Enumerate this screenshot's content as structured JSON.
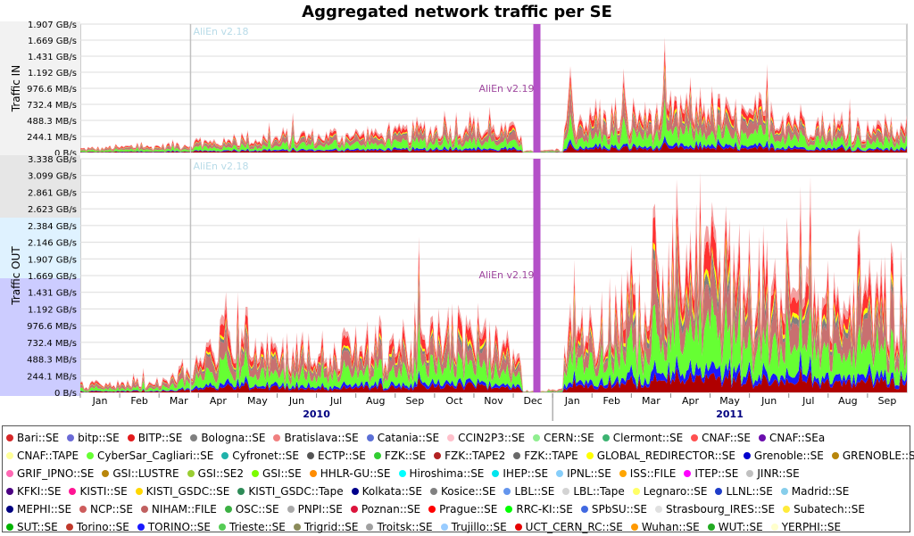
{
  "chart_data": {
    "type": "area",
    "title": "Aggregated network traffic per SE",
    "x_months": [
      "Jan",
      "Feb",
      "Mar",
      "Apr",
      "May",
      "Jun",
      "Jul",
      "Aug",
      "Sep",
      "Oct",
      "Nov",
      "Dec",
      "Jan",
      "Feb",
      "Mar",
      "Apr",
      "May",
      "Jun",
      "Jul",
      "Aug",
      "Sep"
    ],
    "x_years": [
      "2010",
      "2011"
    ],
    "annotations": [
      {
        "label": "AliEn v2.18",
        "month": 2.8
      },
      {
        "label": "AliEn v2.19",
        "month": 11.6
      }
    ],
    "panels": [
      {
        "ylabel": "Traffic IN",
        "ylim": [
          0,
          1.907
        ],
        "ticks": [
          "1.907 GB/s",
          "1.669 GB/s",
          "1.431 GB/s",
          "1.192 GB/s",
          "976.6 MB/s",
          "732.4 MB/s",
          "488.3 MB/s",
          "244.1 MB/s",
          "0 B/s"
        ],
        "approx_total_gbps": [
          0.05,
          0.08,
          0.1,
          0.15,
          0.2,
          0.22,
          0.25,
          0.28,
          0.3,
          0.4,
          0.35,
          0.3,
          0.5,
          0.5,
          0.55,
          0.75,
          0.5,
          0.55,
          0.4,
          0.35,
          0.35
        ]
      },
      {
        "ylabel": "Traffic OUT",
        "ylim": [
          0,
          3.338
        ],
        "ticks": [
          "3.338 GB/s",
          "3.099 GB/s",
          "2.861 GB/s",
          "2.623 GB/s",
          "2.384 GB/s",
          "2.146 GB/s",
          "1.907 GB/s",
          "1.669 GB/s",
          "1.431 GB/s",
          "1.192 GB/s",
          "976.6 MB/s",
          "732.4 MB/s",
          "488.3 MB/s",
          "244.1 MB/s",
          "0 B/s"
        ],
        "approx_total_gbps": [
          0.1,
          0.12,
          0.15,
          0.5,
          0.9,
          0.6,
          0.5,
          0.7,
          0.7,
          0.9,
          0.7,
          0.2,
          1.0,
          1.1,
          1.5,
          2.0,
          1.6,
          1.5,
          1.3,
          1.4,
          1.3
        ]
      }
    ]
  },
  "legend": [
    {
      "name": "Bari::SE",
      "color": "#d62728"
    },
    {
      "name": "bitp::SE",
      "color": "#6a6ad6"
    },
    {
      "name": "BITP::SE",
      "color": "#e31a1c"
    },
    {
      "name": "Bologna::SE",
      "color": "#7f7f7f"
    },
    {
      "name": "Bratislava::SE",
      "color": "#f08080"
    },
    {
      "name": "Catania::SE",
      "color": "#5b6fd6"
    },
    {
      "name": "CCIN2P3::SE",
      "color": "#ffc0cb"
    },
    {
      "name": "CERN::SE",
      "color": "#90ee90"
    },
    {
      "name": "Clermont::SE",
      "color": "#3cb371"
    },
    {
      "name": "CNAF::SE",
      "color": "#ff5050"
    },
    {
      "name": "CNAF::SEa",
      "color": "#6a0dad"
    },
    {
      "name": "CNAF::TAPE",
      "color": "#ffff99"
    },
    {
      "name": "CyberSar_Cagliari::SE",
      "color": "#66ff33"
    },
    {
      "name": "Cyfronet::SE",
      "color": "#20b2aa"
    },
    {
      "name": "ECTP::SE",
      "color": "#555555"
    },
    {
      "name": "FZK::SE",
      "color": "#32cd32"
    },
    {
      "name": "FZK::TAPE2",
      "color": "#b22222"
    },
    {
      "name": "FZK::TAPE",
      "color": "#696969"
    },
    {
      "name": "GLOBAL_REDIRECTOR::SE",
      "color": "#ffff00"
    },
    {
      "name": "Grenoble::SE",
      "color": "#0000cd"
    },
    {
      "name": "GRENOBLE::SE",
      "color": "#b8860b"
    },
    {
      "name": "GRIF_IPNO::SE",
      "color": "#ff69b4"
    },
    {
      "name": "GSI::LUSTRE",
      "color": "#b8860b"
    },
    {
      "name": "GSI::SE2",
      "color": "#9acd32"
    },
    {
      "name": "GSI::SE",
      "color": "#7cfc00"
    },
    {
      "name": "HHLR-GU::SE",
      "color": "#ff8c00"
    },
    {
      "name": "Hiroshima::SE",
      "color": "#00ffff"
    },
    {
      "name": "IHEP::SE",
      "color": "#00e5ee"
    },
    {
      "name": "IPNL::SE",
      "color": "#87cefa"
    },
    {
      "name": "ISS::FILE",
      "color": "#ffa500"
    },
    {
      "name": "ITEP::SE",
      "color": "#ff00ff"
    },
    {
      "name": "JINR::SE",
      "color": "#c0c0c0"
    },
    {
      "name": "KFKI::SE",
      "color": "#4b0082"
    },
    {
      "name": "KISTI::SE",
      "color": "#ff1493"
    },
    {
      "name": "KISTI_GSDC::SE",
      "color": "#ffd700"
    },
    {
      "name": "KISTI_GSDC::Tape",
      "color": "#2e8b57"
    },
    {
      "name": "Kolkata::SE",
      "color": "#00008b"
    },
    {
      "name": "Kosice::SE",
      "color": "#808080"
    },
    {
      "name": "LBL::SE",
      "color": "#6495ed"
    },
    {
      "name": "LBL::Tape",
      "color": "#d3d3d3"
    },
    {
      "name": "Legnaro::SE",
      "color": "#ffff66"
    },
    {
      "name": "LLNL::SE",
      "color": "#1e3cc8"
    },
    {
      "name": "Madrid::SE",
      "color": "#87ceeb"
    },
    {
      "name": "MEPHI::SE",
      "color": "#000080"
    },
    {
      "name": "NCP::SE",
      "color": "#cd5c5c"
    },
    {
      "name": "NIHAM::FILE",
      "color": "#c06060"
    },
    {
      "name": "OSC::SE",
      "color": "#3cb043"
    },
    {
      "name": "PNPI::SE",
      "color": "#a9a9a9"
    },
    {
      "name": "Poznan::SE",
      "color": "#dc143c"
    },
    {
      "name": "Prague::SE",
      "color": "#ff0000"
    },
    {
      "name": "RRC-KI::SE",
      "color": "#00ff00"
    },
    {
      "name": "SPbSU::SE",
      "color": "#4169e1"
    },
    {
      "name": "Strasbourg_IRES::SE",
      "color": "#e0e0e0"
    },
    {
      "name": "Subatech::SE",
      "color": "#ffeb3b"
    },
    {
      "name": "SUT::SE",
      "color": "#00b300"
    },
    {
      "name": "Torino::SE",
      "color": "#c0392b"
    },
    {
      "name": "TORINO::SE",
      "color": "#1a1aff"
    },
    {
      "name": "Trieste::SE",
      "color": "#55cc55"
    },
    {
      "name": "Trigrid::SE",
      "color": "#8b8b5a"
    },
    {
      "name": "Troitsk::SE",
      "color": "#a0a0a0"
    },
    {
      "name": "Trujillo::SE",
      "color": "#99ccff"
    },
    {
      "name": "UCT_CERN_RC::SE",
      "color": "#e60000"
    },
    {
      "name": "Wuhan::SE",
      "color": "#ff9900"
    },
    {
      "name": "WUT::SE",
      "color": "#22aa22"
    },
    {
      "name": "YERPHI::SE",
      "color": "#ffffcc"
    }
  ],
  "legend_rows": [
    11,
    10,
    11,
    11,
    11,
    11
  ]
}
